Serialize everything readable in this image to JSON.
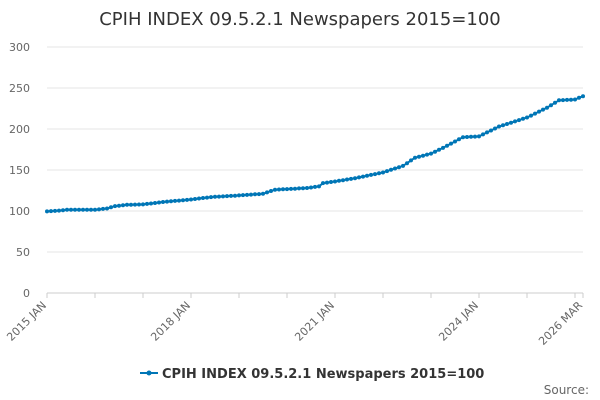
{
  "chart_data": {
    "type": "line",
    "title": "CPIH INDEX 09.5.2.1 Newspapers 2015=100",
    "xlabel": "",
    "ylabel": "",
    "ylim": [
      0,
      300
    ],
    "yticks": [
      "0",
      "50",
      "100",
      "150",
      "200",
      "250",
      "300"
    ],
    "xticks": [
      {
        "label": "2015 JAN",
        "date": "2015-01"
      },
      {
        "label": "2018 JAN",
        "date": "2018-01"
      },
      {
        "label": "2021 JAN",
        "date": "2021-01"
      },
      {
        "label": "2024 JAN",
        "date": "2024-01"
      },
      {
        "label": "2026 MAR",
        "date": "2026-03"
      }
    ],
    "grid": true,
    "legend_position": "bottom-center",
    "line_color": "#0076b6",
    "series": [
      {
        "name": "CPIH INDEX 09.5.2.1 Newspapers 2015=100",
        "keyframes": [
          {
            "date": "2015-01",
            "value": 99.5
          },
          {
            "date": "2015-04",
            "value": 100.5
          },
          {
            "date": "2015-06",
            "value": 101.5
          },
          {
            "date": "2016-01",
            "value": 101.5
          },
          {
            "date": "2016-04",
            "value": 103
          },
          {
            "date": "2016-06",
            "value": 106
          },
          {
            "date": "2016-09",
            "value": 107.5
          },
          {
            "date": "2017-01",
            "value": 108
          },
          {
            "date": "2017-06",
            "value": 111
          },
          {
            "date": "2018-01",
            "value": 114
          },
          {
            "date": "2018-06",
            "value": 117
          },
          {
            "date": "2019-01",
            "value": 119
          },
          {
            "date": "2019-07",
            "value": 121
          },
          {
            "date": "2019-10",
            "value": 126
          },
          {
            "date": "2020-06",
            "value": 128
          },
          {
            "date": "2020-09",
            "value": 130
          },
          {
            "date": "2020-10",
            "value": 134
          },
          {
            "date": "2021-01",
            "value": 136
          },
          {
            "date": "2021-06",
            "value": 140
          },
          {
            "date": "2022-01",
            "value": 147
          },
          {
            "date": "2022-06",
            "value": 155
          },
          {
            "date": "2022-09",
            "value": 165
          },
          {
            "date": "2023-01",
            "value": 170
          },
          {
            "date": "2023-04",
            "value": 177
          },
          {
            "date": "2023-09",
            "value": 190
          },
          {
            "date": "2024-01",
            "value": 191
          },
          {
            "date": "2024-06",
            "value": 203
          },
          {
            "date": "2025-01",
            "value": 214
          },
          {
            "date": "2025-06",
            "value": 226
          },
          {
            "date": "2025-09",
            "value": 235
          },
          {
            "date": "2026-01",
            "value": 236
          },
          {
            "date": "2026-03",
            "value": 240
          }
        ]
      }
    ]
  },
  "source_label": "Source:"
}
